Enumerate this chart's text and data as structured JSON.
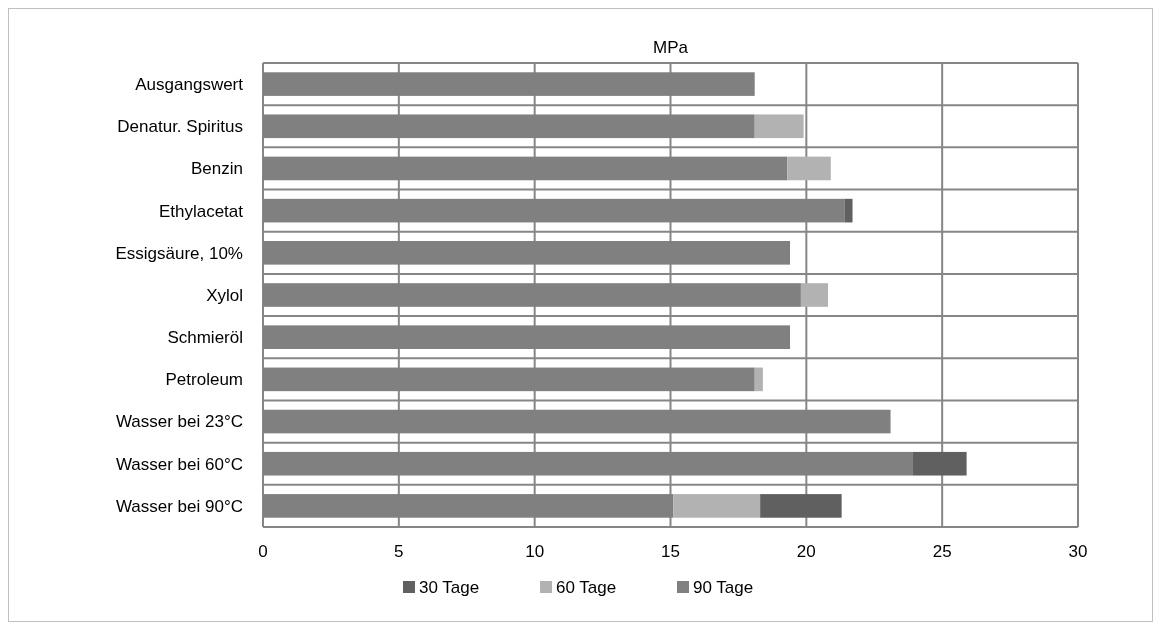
{
  "chart_data": {
    "type": "bar",
    "orientation": "horizontal",
    "stacked": true,
    "title": "MPa",
    "categories": [
      "Ausgangswert",
      "Denatur. Spiritus",
      "Benzin",
      "Ethylacetat",
      "Essigsäure, 10%",
      "Xylol",
      "Schmieröl",
      "Petroleum",
      "Wasser bei 23°C",
      "Wasser bei 60°C",
      "Wasser bei 90°C"
    ],
    "series": [
      {
        "name": "90 Tage",
        "color": "#808080",
        "values": [
          18.1,
          18.1,
          19.3,
          21.4,
          19.4,
          19.8,
          19.4,
          18.1,
          23.1,
          23.9,
          15.1
        ]
      },
      {
        "name": "60 Tage",
        "color": "#b2b2b2",
        "values": [
          null,
          1.8,
          1.6,
          null,
          null,
          1.0,
          null,
          0.3,
          null,
          null,
          3.2
        ]
      },
      {
        "name": "30 Tage",
        "color": "#606060",
        "values": [
          null,
          null,
          null,
          0.3,
          null,
          null,
          null,
          null,
          null,
          2.0,
          3.0
        ]
      }
    ],
    "xlim": [
      0,
      30
    ],
    "xticks": [
      0,
      5,
      10,
      15,
      20,
      25,
      30
    ],
    "grid": true,
    "legend": "bottom"
  }
}
